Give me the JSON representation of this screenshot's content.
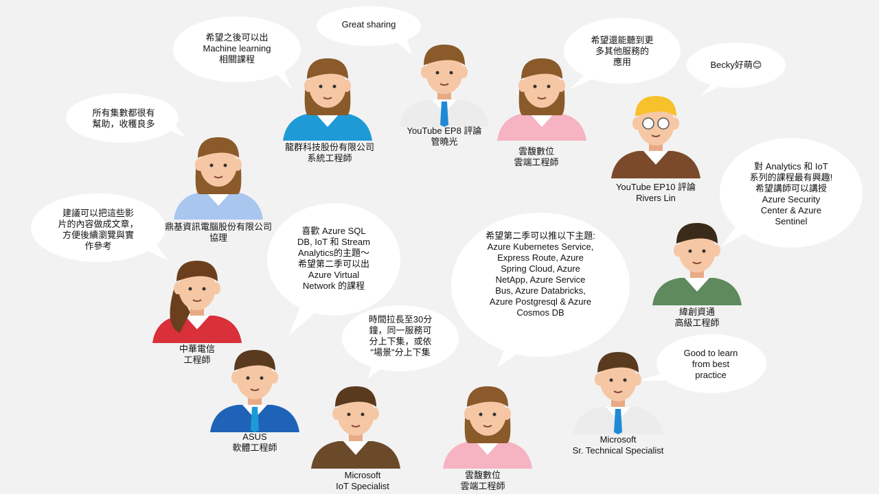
{
  "people": [
    {
      "id": "p1",
      "caption": [
        "龍群科技股份有限公司",
        "系統工程師"
      ],
      "comment": [
        "希望之後可以出",
        "Machine learning",
        "相關課程"
      ],
      "colors": {
        "hair": "#8a5a2b",
        "shirt": "#1e9bd7"
      }
    },
    {
      "id": "p2",
      "caption": [
        "YouTube EP8 評論",
        "管曉光"
      ],
      "comment": [
        "Great sharing"
      ],
      "colors": {
        "hair": "#8a5a2b",
        "shirt": "#ececec",
        "tie": "#1e8ad6"
      }
    },
    {
      "id": "p3",
      "caption": [
        "雲馥數位",
        "雲端工程師"
      ],
      "comment": [
        "希望還能聽到更",
        "多其他服務的",
        "應用"
      ],
      "colors": {
        "hair": "#8a5a2b",
        "shirt": "#f6b3c2"
      }
    },
    {
      "id": "p4",
      "caption": [
        "YouTube EP10 評論",
        "Rivers Lin"
      ],
      "comment": [
        "Becky好萌😊"
      ],
      "colors": {
        "hair": "#f6c12a",
        "shirt": "#7a4a2a"
      }
    },
    {
      "id": "p5",
      "caption": [
        "鼎基資訊電腦股份有限公司",
        "協理"
      ],
      "comment": [
        "所有集數都很有",
        "幫助，收穫良多"
      ],
      "colors": {
        "hair": "#8a5a2b",
        "shirt": "#a9c6ef"
      }
    },
    {
      "id": "p6",
      "caption": [
        "中華電信",
        "工程師"
      ],
      "comment": [
        "建議可以把這些影",
        "片的內容做成文章，",
        "方便後續瀏覽與實",
        "作參考"
      ],
      "colors": {
        "hair": "#6b3f1e",
        "shirt": "#d9303a"
      }
    },
    {
      "id": "p7",
      "caption": [
        "ASUS",
        "軟體工程師"
      ],
      "comment": [
        "喜歡 Azure SQL",
        "DB, IoT 和 Stream",
        "Analytics的主題～",
        "希望第二季可以出",
        "Azure Virtual",
        "Network 的課程"
      ],
      "colors": {
        "hair": "#5a3a1e",
        "shirt": "#1e63b8",
        "tie": "#1e9bd7"
      }
    },
    {
      "id": "p8",
      "caption": [
        "Microsoft",
        "IoT Specialist"
      ],
      "comment": [
        "時間拉長至30分",
        "鐘，同一服務可",
        "分上下集，或依",
        "\"場景\"分上下集"
      ],
      "colors": {
        "hair": "#5a3a1e",
        "shirt": "#6b4a2a"
      }
    },
    {
      "id": "p9",
      "caption": [
        "雲馥數位",
        "雲端工程師"
      ],
      "comment": [
        "希望第二季可以推以下主題:",
        "Azure Kubernetes Service,",
        "Express Route, Azure",
        "Spring Cloud, Azure",
        "NetApp, Azure Service",
        "Bus, Azure Databricks,",
        "Azure Postgresql & Azure",
        "Cosmos DB"
      ],
      "colors": {
        "hair": "#8a5a2b",
        "shirt": "#f6b3c2"
      }
    },
    {
      "id": "p10",
      "caption": [
        "緯創資通",
        "高級工程師"
      ],
      "comment": [
        "對 Analytics 和 IoT",
        "系列的課程最有興趣!",
        "希望講師可以講授",
        "Azure Security",
        "Center & Azure",
        "Sentinel"
      ],
      "colors": {
        "hair": "#3a2a1a",
        "shirt": "#5e8a5e"
      }
    },
    {
      "id": "p11",
      "caption": [
        "Microsoft",
        "Sr. Technical  Specialist"
      ],
      "comment": [
        "Good to learn",
        "from best",
        "practice"
      ],
      "colors": {
        "hair": "#5a3a1e",
        "shirt": "#ececec",
        "tie": "#1e8ad6"
      }
    }
  ],
  "palette": {
    "background": "#f2f2f2",
    "bubble": "#ffffff",
    "skin": "#f6c7a4",
    "text": "#111111"
  }
}
